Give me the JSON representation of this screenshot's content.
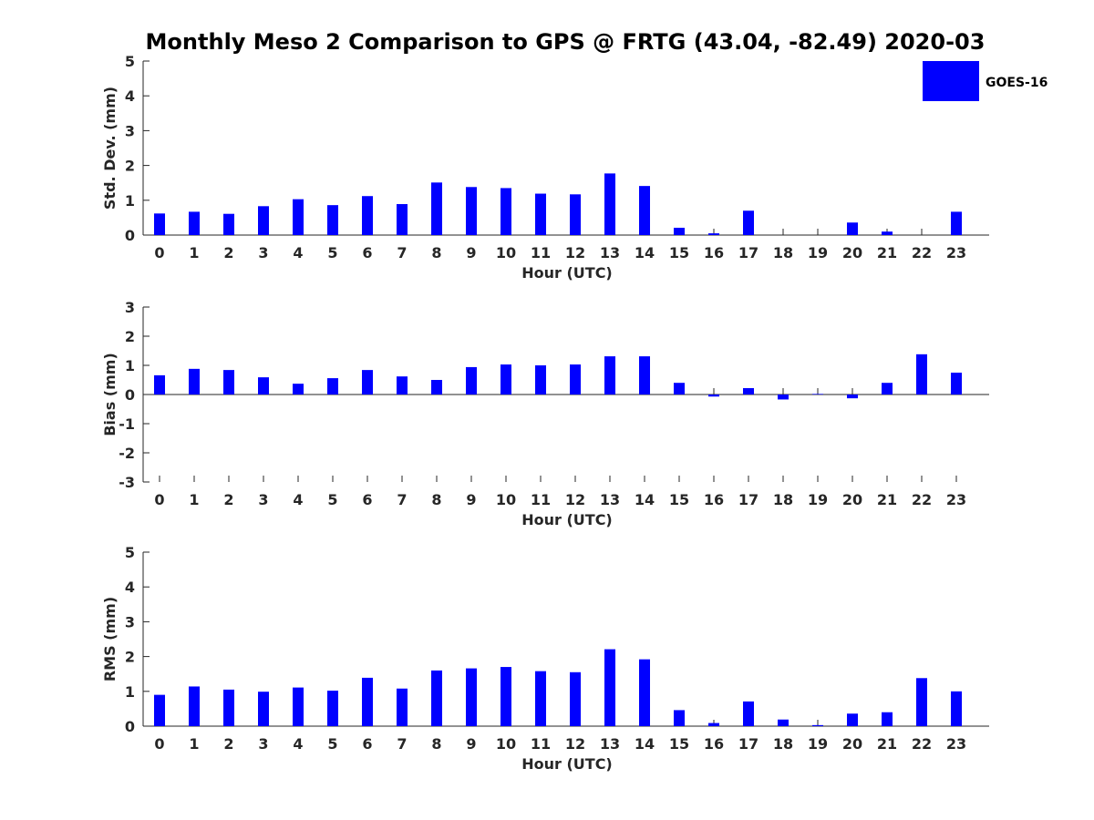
{
  "chart_data": {
    "title": "Monthly Meso 2 Comparison to GPS @ FRTG (43.04, -82.49) 2020-03",
    "legend": {
      "label": "GOES-16",
      "color": "#0000ff",
      "placement": "top-right"
    },
    "bar_color": "#0000ff",
    "panels": [
      {
        "type": "bar",
        "series_name": "GOES-16",
        "xlabel": "Hour (UTC)",
        "ylabel": "Std. Dev. (mm)",
        "ylim": [
          0,
          5
        ],
        "yticks": [
          "0",
          "1",
          "2",
          "3",
          "4",
          "5"
        ],
        "categories": [
          "0",
          "1",
          "2",
          "3",
          "4",
          "5",
          "6",
          "7",
          "8",
          "9",
          "10",
          "11",
          "12",
          "13",
          "14",
          "15",
          "16",
          "17",
          "18",
          "19",
          "20",
          "21",
          "22",
          "23"
        ],
        "values": [
          0.62,
          0.67,
          0.61,
          0.83,
          1.03,
          0.86,
          1.12,
          0.89,
          1.51,
          1.38,
          1.35,
          1.19,
          1.17,
          1.77,
          1.41,
          0.21,
          0.05,
          0.7,
          0,
          0,
          0.36,
          0.1,
          0,
          0.67
        ],
        "grid": false
      },
      {
        "type": "bar",
        "series_name": "GOES-16",
        "xlabel": "Hour (UTC)",
        "ylabel": "Bias (mm)",
        "ylim": [
          -3,
          3
        ],
        "yticks": [
          "-3",
          "-2",
          "-1",
          "0",
          "1",
          "2",
          "3"
        ],
        "categories": [
          "0",
          "1",
          "2",
          "3",
          "4",
          "5",
          "6",
          "7",
          "8",
          "9",
          "10",
          "11",
          "12",
          "13",
          "14",
          "15",
          "16",
          "17",
          "18",
          "19",
          "20",
          "21",
          "22",
          "23"
        ],
        "values": [
          0.66,
          0.88,
          0.84,
          0.59,
          0.37,
          0.56,
          0.84,
          0.62,
          0.5,
          0.94,
          1.03,
          1.0,
          1.03,
          1.31,
          1.31,
          0.4,
          -0.07,
          0.22,
          -0.17,
          0.02,
          -0.13,
          0.4,
          1.38,
          0.75
        ],
        "grid": false
      },
      {
        "type": "bar",
        "series_name": "GOES-16",
        "xlabel": "Hour (UTC)",
        "ylabel": "RMS (mm)",
        "ylim": [
          0,
          5
        ],
        "yticks": [
          "0",
          "1",
          "2",
          "3",
          "4",
          "5"
        ],
        "categories": [
          "0",
          "1",
          "2",
          "3",
          "4",
          "5",
          "6",
          "7",
          "8",
          "9",
          "10",
          "11",
          "12",
          "13",
          "14",
          "15",
          "16",
          "17",
          "18",
          "19",
          "20",
          "21",
          "22",
          "23"
        ],
        "values": [
          0.9,
          1.14,
          1.05,
          0.99,
          1.11,
          1.02,
          1.39,
          1.08,
          1.6,
          1.66,
          1.7,
          1.58,
          1.55,
          2.21,
          1.92,
          0.46,
          0.09,
          0.71,
          0.19,
          0.03,
          0.36,
          0.4,
          1.38,
          1.0
        ],
        "grid": false
      }
    ]
  }
}
